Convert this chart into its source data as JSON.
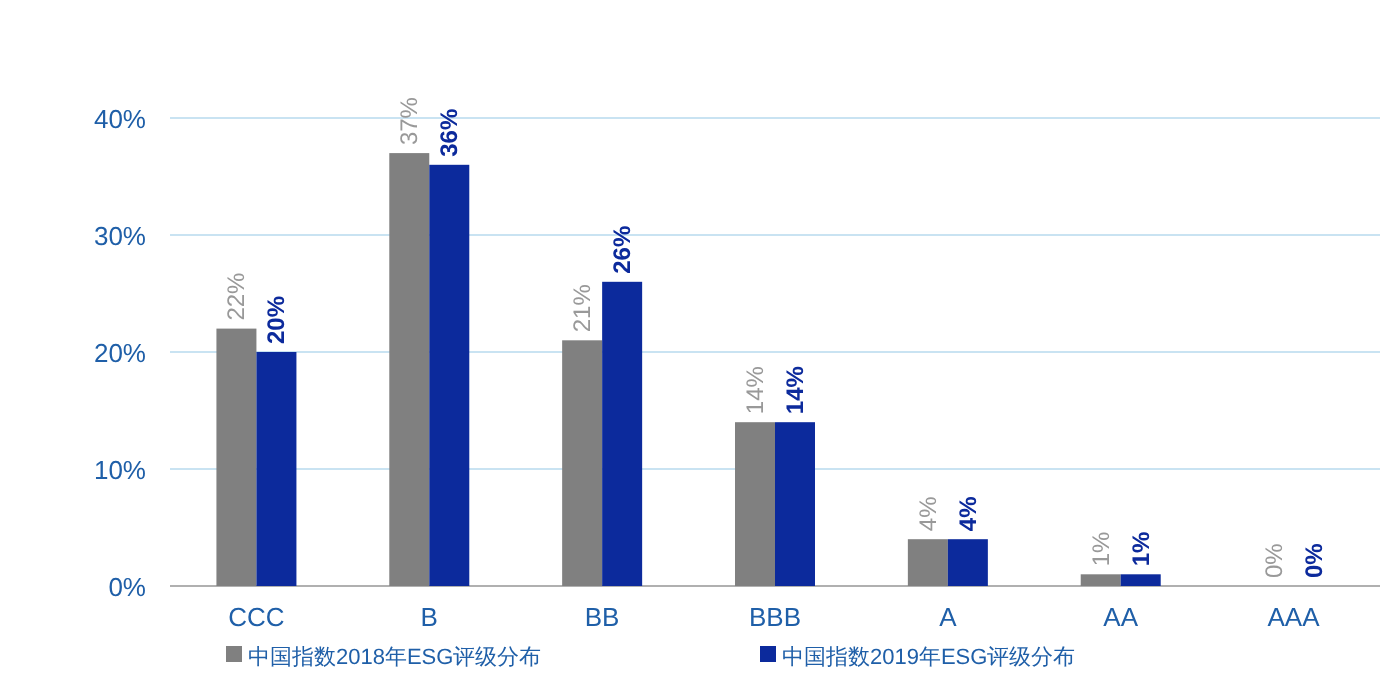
{
  "chart_data": {
    "type": "bar",
    "categories": [
      "CCC",
      "B",
      "BB",
      "BBB",
      "A",
      "AA",
      "AAA"
    ],
    "series": [
      {
        "name": "中国指数2018年ESG评级分布",
        "color": "#808080",
        "values": [
          22,
          37,
          21,
          14,
          4,
          1,
          0
        ],
        "value_labels": [
          "22%",
          "37%",
          "21%",
          "14%",
          "4%",
          "1%",
          "0%"
        ]
      },
      {
        "name": "中国指数2019年ESG评级分布",
        "color": "#0c2a9c",
        "values": [
          20,
          36,
          26,
          14,
          4,
          1,
          0
        ],
        "value_labels": [
          "20%",
          "36%",
          "26%",
          "14%",
          "4%",
          "1%",
          "0%"
        ]
      }
    ],
    "ylim": [
      0,
      40
    ],
    "yticks": [
      {
        "value": 0,
        "label": "0%"
      },
      {
        "value": 10,
        "label": "10%"
      },
      {
        "value": 20,
        "label": "20%"
      },
      {
        "value": 30,
        "label": "30%"
      },
      {
        "value": 40,
        "label": "40%"
      }
    ],
    "grid": "y",
    "legend": "bottom"
  }
}
